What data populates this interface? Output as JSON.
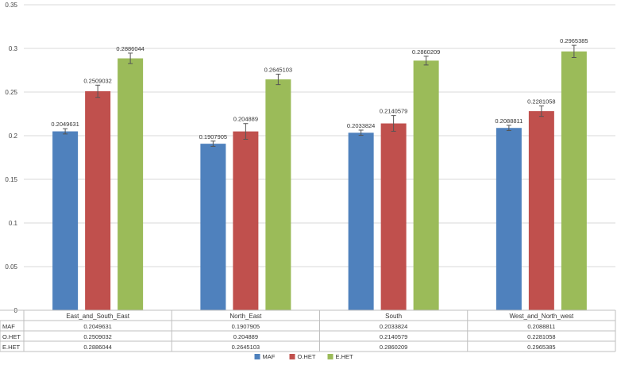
{
  "chart_data": {
    "type": "bar",
    "categories": [
      "East_and_South_East",
      "North_East",
      "South",
      "West_and_North_west"
    ],
    "series": [
      {
        "name": "MAF",
        "color": "#4f81bd",
        "values": [
          0.2049631,
          0.1907905,
          0.2033824,
          0.2088811
        ],
        "labels": [
          "0.2049631",
          "0.1907905",
          "0.2033824",
          "0.2088811"
        ],
        "error": [
          0.003,
          0.003,
          0.003,
          0.003
        ]
      },
      {
        "name": "O.HET",
        "color": "#c0504d",
        "values": [
          0.2509032,
          0.204889,
          0.2140579,
          0.2281058
        ],
        "labels": [
          "0.2509032",
          "0.204889",
          "0.2140579",
          "0.2281058"
        ],
        "error": [
          0.007,
          0.009,
          0.009,
          0.006
        ]
      },
      {
        "name": "E.HET",
        "color": "#9bbb59",
        "values": [
          0.2886044,
          0.2645103,
          0.2860209,
          0.2965385
        ],
        "labels": [
          "0.2886044",
          "0.2645103",
          "0.2860209",
          "0.2965385"
        ],
        "error": [
          0.006,
          0.006,
          0.005,
          0.007
        ]
      }
    ],
    "yticks": [
      "0",
      "0.05",
      "0.1",
      "0.15",
      "0.2",
      "0.25",
      "0.3",
      "0.35"
    ],
    "ylim": [
      0,
      0.35
    ],
    "grid": true,
    "legend": "bottom",
    "data_table": true
  }
}
